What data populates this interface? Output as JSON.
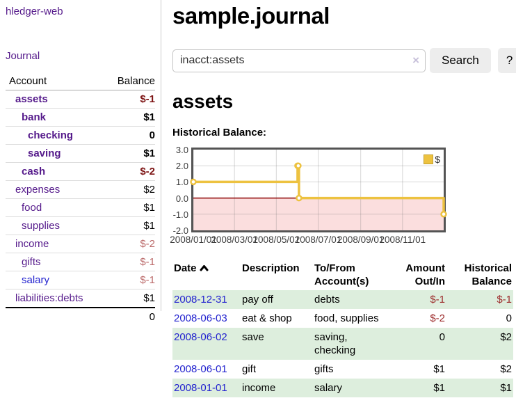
{
  "sidebar": {
    "brand": "hledger-web",
    "journal_link": "Journal",
    "accounts": {
      "headers": {
        "account": "Account",
        "balance": "Balance"
      },
      "rows": [
        {
          "account": "assets",
          "balance": "$-1"
        },
        {
          "account": "bank",
          "balance": "$1"
        },
        {
          "account": "checking",
          "balance": "0"
        },
        {
          "account": "saving",
          "balance": "$1"
        },
        {
          "account": "cash",
          "balance": "$-2"
        },
        {
          "account": "expenses",
          "balance": "$2"
        },
        {
          "account": "food",
          "balance": "$1"
        },
        {
          "account": "supplies",
          "balance": "$1"
        },
        {
          "account": "income",
          "balance": "$-2"
        },
        {
          "account": "gifts",
          "balance": "$-1"
        },
        {
          "account": "salary",
          "balance": "$-1"
        },
        {
          "account": "liabilities:debts",
          "balance": "$1"
        }
      ],
      "total": "0"
    }
  },
  "main": {
    "title": "sample.journal",
    "search": {
      "value": "inacct:assets",
      "clear_icon": "×",
      "search_button": "Search",
      "help_button": "?"
    },
    "account_heading": "assets",
    "section_label": "Historical Balance:"
  },
  "chart_data": {
    "type": "line",
    "title": "Historical Balance",
    "legend": [
      {
        "label": "$",
        "color": "#edc240"
      }
    ],
    "legend_position": "top-right",
    "grid": true,
    "ylim": [
      -2,
      3
    ],
    "x_range": [
      "2008-01-01",
      "2008-12-31"
    ],
    "y_ticks": [
      {
        "label": "3.0",
        "value": 3
      },
      {
        "label": "2.0",
        "value": 2
      },
      {
        "label": "1.0",
        "value": 1
      },
      {
        "label": "0.0",
        "value": 0
      },
      {
        "label": "-1.0",
        "value": -1
      },
      {
        "label": "-2.0",
        "value": -2
      }
    ],
    "x_ticks": [
      {
        "label": "2008/01/01",
        "date": "2008-01-01"
      },
      {
        "label": "2008/03/01",
        "date": "2008-03-01"
      },
      {
        "label": "2008/05/01",
        "date": "2008-05-01"
      },
      {
        "label": "2008/07/01",
        "date": "2008-07-01"
      },
      {
        "label": "2008/09/01",
        "date": "2008-09-01"
      },
      {
        "label": "2008/11/01",
        "date": "2008-11-01"
      }
    ],
    "series": [
      {
        "name": "$",
        "color": "#edc240",
        "step": true,
        "points": [
          [
            "2008-01-01",
            1
          ],
          [
            "2008-06-01",
            2
          ],
          [
            "2008-06-02",
            2
          ],
          [
            "2008-06-03",
            0
          ],
          [
            "2008-12-31",
            -1
          ]
        ]
      }
    ],
    "negative_band_color": "#fbdede",
    "zero_line_color": "#8b0000"
  },
  "register": {
    "sort": "ascending",
    "headers": {
      "date": "Date",
      "description": "Description",
      "accounts": "To/From Account(s)",
      "amount": "Amount Out/In",
      "balance": "Historical Balance"
    },
    "rows": [
      {
        "date": "2008-12-31",
        "description": "pay off",
        "accounts": "debts",
        "amount": "$-1",
        "balance": "$-1"
      },
      {
        "date": "2008-06-03",
        "description": "eat & shop",
        "accounts": "food, supplies",
        "amount": "$-2",
        "balance": "0"
      },
      {
        "date": "2008-06-02",
        "description": "save",
        "accounts": "saving, checking",
        "amount": "0",
        "balance": "$2"
      },
      {
        "date": "2008-06-01",
        "description": "gift",
        "accounts": "gifts",
        "amount": "$1",
        "balance": "$2"
      },
      {
        "date": "2008-01-01",
        "description": "income",
        "accounts": "salary",
        "amount": "$1",
        "balance": "$1"
      }
    ]
  }
}
